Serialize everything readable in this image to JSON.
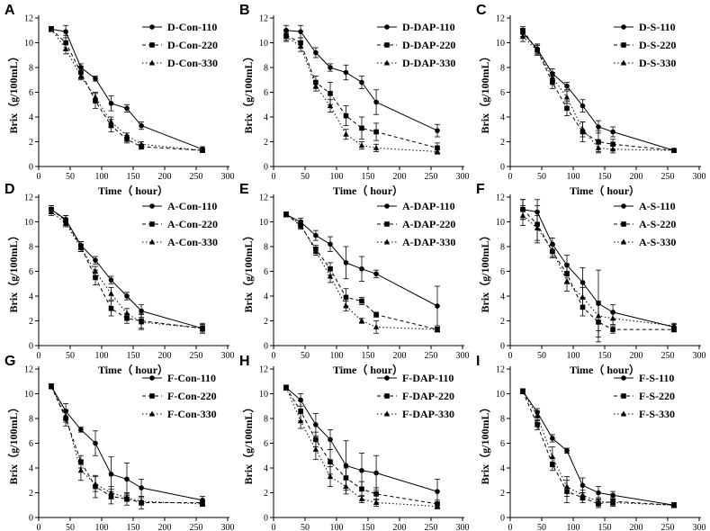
{
  "chart_data": [
    {
      "type": "line",
      "panel_label": "A",
      "xlabel": "Time（ hour）",
      "ylabel": "Brix（g/100mL）",
      "xlim": [
        0,
        300
      ],
      "ylim": [
        0,
        12
      ],
      "xticks": [
        0,
        50,
        100,
        150,
        200,
        250,
        300
      ],
      "yticks": [
        0,
        2,
        4,
        6,
        8,
        10,
        12
      ],
      "x": [
        20,
        43,
        67,
        90,
        115,
        140,
        163,
        260
      ],
      "series": [
        {
          "name": "D-Con-110",
          "marker": "circle",
          "dash": "solid",
          "values": [
            11.1,
            10.9,
            8.0,
            7.1,
            5.1,
            4.7,
            3.3,
            1.4
          ],
          "errors": [
            0.2,
            0.5,
            0.3,
            0.2,
            0.6,
            0.3,
            0.3,
            0.2
          ]
        },
        {
          "name": "D-Con-220",
          "marker": "square",
          "dash": "dash",
          "values": [
            11.1,
            10.0,
            7.6,
            5.3,
            3.3,
            2.2,
            1.6,
            1.3
          ],
          "errors": [
            0.2,
            0.6,
            0.5,
            0.6,
            0.5,
            0.3,
            0.2,
            0.1
          ]
        },
        {
          "name": "D-Con-330",
          "marker": "triangle",
          "dash": "dot",
          "values": [
            11.1,
            9.5,
            7.3,
            5.6,
            3.6,
            2.5,
            1.8,
            1.3
          ],
          "errors": [
            0.2,
            0.4,
            0.3,
            0.4,
            0.4,
            0.2,
            0.2,
            0.1
          ]
        }
      ]
    },
    {
      "type": "line",
      "panel_label": "B",
      "xlabel": "Time（ hour）",
      "ylabel": "Brix（g/100mL）",
      "xlim": [
        0,
        300
      ],
      "ylim": [
        0,
        12
      ],
      "xticks": [
        0,
        50,
        100,
        150,
        200,
        250,
        300
      ],
      "yticks": [
        0,
        2,
        4,
        6,
        8,
        10,
        12
      ],
      "x": [
        20,
        43,
        67,
        90,
        115,
        140,
        163,
        260
      ],
      "series": [
        {
          "name": "D-DAP-110",
          "marker": "circle",
          "dash": "solid",
          "values": [
            11.0,
            10.9,
            9.2,
            8.0,
            7.6,
            6.8,
            5.2,
            2.9
          ],
          "errors": [
            0.4,
            0.5,
            0.4,
            0.3,
            0.6,
            0.5,
            1.0,
            0.5
          ]
        },
        {
          "name": "D-DAP-220",
          "marker": "square",
          "dash": "dash",
          "values": [
            10.6,
            10.0,
            6.8,
            5.9,
            4.1,
            3.1,
            2.8,
            1.5
          ],
          "errors": [
            0.4,
            0.4,
            0.5,
            0.9,
            0.8,
            0.9,
            0.7,
            0.4
          ]
        },
        {
          "name": "D-DAP-330",
          "marker": "triangle",
          "dash": "dot",
          "values": [
            10.5,
            9.7,
            6.5,
            4.9,
            2.6,
            1.7,
            1.5,
            1.2
          ],
          "errors": [
            0.4,
            0.4,
            0.4,
            0.5,
            0.4,
            0.3,
            0.3,
            0.2
          ]
        }
      ]
    },
    {
      "type": "line",
      "panel_label": "C",
      "xlabel": "Time（ hour）",
      "ylabel": "Brix（g/100mL）",
      "xlim": [
        0,
        300
      ],
      "ylim": [
        0,
        12
      ],
      "xticks": [
        0,
        50,
        100,
        150,
        200,
        250,
        300
      ],
      "yticks": [
        0,
        2,
        4,
        6,
        8,
        10,
        12
      ],
      "x": [
        20,
        43,
        67,
        90,
        115,
        140,
        163,
        260
      ],
      "series": [
        {
          "name": "D-S-110",
          "marker": "circle",
          "dash": "solid",
          "values": [
            10.8,
            9.5,
            7.5,
            6.5,
            4.9,
            3.2,
            2.8,
            1.3
          ],
          "errors": [
            0.3,
            0.4,
            0.4,
            0.3,
            0.5,
            0.5,
            0.4,
            0.1
          ]
        },
        {
          "name": "D-S-220",
          "marker": "square",
          "dash": "dash",
          "values": [
            11.0,
            9.4,
            6.8,
            4.7,
            2.8,
            2.0,
            1.8,
            1.3
          ],
          "errors": [
            0.3,
            0.4,
            0.5,
            0.6,
            0.8,
            0.9,
            0.4,
            0.1
          ]
        },
        {
          "name": "D-S-330",
          "marker": "triangle",
          "dash": "dot",
          "values": [
            10.5,
            9.4,
            7.2,
            5.6,
            3.0,
            1.5,
            1.4,
            1.3
          ],
          "errors": [
            0.4,
            0.4,
            0.4,
            0.5,
            0.6,
            0.3,
            0.3,
            0.1
          ]
        }
      ]
    },
    {
      "type": "line",
      "panel_label": "D",
      "xlabel": "Time（ hour）",
      "ylabel": "Brix（g/100mL）",
      "xlim": [
        0,
        300
      ],
      "ylim": [
        0,
        12
      ],
      "xticks": [
        0,
        50,
        100,
        150,
        200,
        250,
        300
      ],
      "yticks": [
        0,
        2,
        4,
        6,
        8,
        10,
        12
      ],
      "x": [
        20,
        43,
        67,
        90,
        115,
        140,
        163,
        260
      ],
      "series": [
        {
          "name": "A-Con-110",
          "marker": "circle",
          "dash": "solid",
          "values": [
            11.0,
            10.2,
            8.1,
            6.9,
            5.3,
            4.0,
            2.8,
            1.4
          ],
          "errors": [
            0.3,
            0.3,
            0.3,
            0.3,
            0.3,
            0.3,
            0.5,
            0.4
          ]
        },
        {
          "name": "A-Con-220",
          "marker": "square",
          "dash": "dash",
          "values": [
            11.0,
            10.1,
            8.0,
            5.5,
            3.0,
            2.2,
            2.0,
            1.4
          ],
          "errors": [
            0.3,
            0.4,
            0.4,
            0.6,
            0.6,
            0.4,
            0.6,
            0.3
          ]
        },
        {
          "name": "A-Con-330",
          "marker": "triangle",
          "dash": "dot",
          "values": [
            10.8,
            9.9,
            7.9,
            6.0,
            4.2,
            2.6,
            1.9,
            1.4
          ],
          "errors": [
            0.3,
            0.3,
            0.3,
            0.4,
            0.5,
            0.4,
            0.6,
            0.2
          ]
        }
      ]
    },
    {
      "type": "line",
      "panel_label": "E",
      "xlabel": "Time（ hour）",
      "ylabel": "Brix（g/100mL）",
      "xlim": [
        0,
        300
      ],
      "ylim": [
        0,
        12
      ],
      "xticks": [
        0,
        50,
        100,
        150,
        200,
        250,
        300
      ],
      "yticks": [
        0,
        2,
        4,
        6,
        8,
        10,
        12
      ],
      "x": [
        20,
        43,
        67,
        90,
        115,
        140,
        163,
        260
      ],
      "series": [
        {
          "name": "A-DAP-110",
          "marker": "circle",
          "dash": "solid",
          "values": [
            10.6,
            10.0,
            8.9,
            8.2,
            6.7,
            6.2,
            5.8,
            3.2
          ],
          "errors": [
            0.2,
            0.3,
            0.4,
            0.6,
            1.3,
            1.0,
            0.3,
            1.6
          ]
        },
        {
          "name": "A-DAP-220",
          "marker": "square",
          "dash": "dash",
          "values": [
            10.6,
            9.7,
            7.8,
            6.2,
            3.9,
            3.6,
            2.5,
            1.3
          ],
          "errors": [
            0.2,
            0.3,
            0.3,
            0.5,
            0.7,
            0.3,
            0.2,
            0.2
          ]
        },
        {
          "name": "A-DAP-330",
          "marker": "triangle",
          "dash": "dot",
          "values": [
            10.6,
            9.8,
            7.6,
            5.6,
            3.2,
            2.0,
            1.5,
            1.3
          ],
          "errors": [
            0.2,
            0.3,
            0.3,
            0.5,
            0.4,
            0.2,
            0.5,
            0.2
          ]
        }
      ]
    },
    {
      "type": "line",
      "panel_label": "F",
      "xlabel": "Time（ hour）",
      "ylabel": "Brix（g/100mL）",
      "xlim": [
        0,
        300
      ],
      "ylim": [
        0,
        12
      ],
      "xticks": [
        0,
        50,
        100,
        150,
        200,
        250,
        300
      ],
      "yticks": [
        0,
        2,
        4,
        6,
        8,
        10,
        12
      ],
      "x": [
        20,
        43,
        67,
        90,
        115,
        140,
        163,
        260
      ],
      "series": [
        {
          "name": "A-S-110",
          "marker": "circle",
          "dash": "solid",
          "values": [
            11.0,
            10.8,
            8.2,
            6.5,
            5.1,
            3.4,
            2.7,
            1.5
          ],
          "errors": [
            0.8,
            1.0,
            0.5,
            0.8,
            1.2,
            2.7,
            0.6,
            0.2
          ]
        },
        {
          "name": "A-S-220",
          "marker": "square",
          "dash": "dash",
          "values": [
            11.0,
            9.8,
            7.6,
            5.8,
            3.1,
            1.9,
            1.3,
            1.3
          ],
          "errors": [
            0.8,
            1.5,
            0.5,
            0.8,
            0.7,
            1.6,
            0.3,
            0.2
          ]
        },
        {
          "name": "A-S-330",
          "marker": "triangle",
          "dash": "dot",
          "values": [
            10.5,
            9.5,
            7.7,
            5.2,
            3.9,
            2.4,
            2.2,
            1.6
          ],
          "errors": [
            0.8,
            1.0,
            0.5,
            0.8,
            0.8,
            1.2,
            0.5,
            0.2
          ]
        }
      ]
    },
    {
      "type": "line",
      "panel_label": "G",
      "xlabel": "Time（ hour）",
      "ylabel": "Brix（g/100mL）",
      "xlim": [
        0,
        300
      ],
      "ylim": [
        0,
        12
      ],
      "xticks": [
        0,
        50,
        100,
        150,
        200,
        250,
        300
      ],
      "yticks": [
        0,
        2,
        4,
        6,
        8,
        10,
        12
      ],
      "x": [
        20,
        43,
        67,
        90,
        115,
        140,
        163,
        260
      ],
      "series": [
        {
          "name": "F-Con-110",
          "marker": "circle",
          "dash": "solid",
          "values": [
            10.6,
            8.6,
            7.1,
            6.0,
            3.5,
            3.1,
            2.4,
            1.4
          ],
          "errors": [
            0.2,
            0.6,
            0.2,
            1.0,
            1.4,
            1.3,
            0.7,
            0.3
          ]
        },
        {
          "name": "F-Con-220",
          "marker": "square",
          "dash": "dash",
          "values": [
            10.6,
            8.0,
            4.5,
            2.5,
            1.7,
            1.5,
            1.2,
            1.2
          ],
          "errors": [
            0.2,
            0.6,
            0.5,
            0.9,
            0.6,
            0.5,
            0.5,
            0.2
          ]
        },
        {
          "name": "F-Con-330",
          "marker": "triangle",
          "dash": "dot",
          "values": [
            10.6,
            8.2,
            3.8,
            2.7,
            2.0,
            1.6,
            1.3,
            1.1
          ],
          "errors": [
            0.2,
            0.5,
            0.8,
            0.6,
            0.5,
            0.3,
            0.3,
            0.2
          ]
        }
      ]
    },
    {
      "type": "line",
      "panel_label": "H",
      "xlabel": "Time（ hour）",
      "ylabel": "Brix（g/100mL）",
      "xlim": [
        0,
        300
      ],
      "ylim": [
        0,
        12
      ],
      "xticks": [
        0,
        50,
        100,
        150,
        200,
        250,
        300
      ],
      "yticks": [
        0,
        2,
        4,
        6,
        8,
        10,
        12
      ],
      "x": [
        20,
        43,
        67,
        90,
        115,
        140,
        163,
        260
      ],
      "series": [
        {
          "name": "F-DAP-110",
          "marker": "circle",
          "dash": "solid",
          "values": [
            10.5,
            9.5,
            7.5,
            6.3,
            4.2,
            3.8,
            3.6,
            2.1
          ],
          "errors": [
            0.2,
            0.5,
            0.9,
            0.8,
            2.0,
            1.4,
            1.4,
            1.0
          ]
        },
        {
          "name": "F-DAP-220",
          "marker": "square",
          "dash": "dash",
          "values": [
            10.5,
            8.6,
            6.3,
            4.5,
            3.2,
            2.3,
            1.9,
            1.1
          ],
          "errors": [
            0.2,
            0.8,
            0.6,
            1.0,
            0.8,
            0.6,
            0.5,
            0.3
          ]
        },
        {
          "name": "F-DAP-330",
          "marker": "triangle",
          "dash": "dot",
          "values": [
            10.5,
            7.8,
            5.5,
            3.3,
            2.5,
            1.5,
            1.2,
            0.9
          ],
          "errors": [
            0.2,
            0.6,
            0.8,
            0.8,
            0.6,
            0.3,
            0.3,
            0.2
          ]
        }
      ]
    },
    {
      "type": "line",
      "panel_label": "I",
      "xlabel": "Time（ hour）",
      "ylabel": "Brix（g/100mL）",
      "xlim": [
        0,
        300
      ],
      "ylim": [
        0,
        12
      ],
      "xticks": [
        0,
        50,
        100,
        150,
        200,
        250,
        300
      ],
      "yticks": [
        0,
        2,
        4,
        6,
        8,
        10,
        12
      ],
      "x": [
        20,
        43,
        67,
        90,
        115,
        140,
        163,
        260
      ],
      "series": [
        {
          "name": "F-S-110",
          "marker": "circle",
          "dash": "solid",
          "values": [
            10.2,
            8.5,
            6.4,
            5.4,
            2.6,
            2.0,
            1.8,
            1.0
          ],
          "errors": [
            0.2,
            0.3,
            0.3,
            0.2,
            0.6,
            0.5,
            0.3,
            0.2
          ]
        },
        {
          "name": "F-S-220",
          "marker": "square",
          "dash": "dash",
          "values": [
            10.2,
            7.5,
            4.3,
            2.1,
            1.6,
            1.1,
            1.3,
            1.0
          ],
          "errors": [
            0.2,
            0.4,
            0.5,
            0.9,
            0.4,
            0.3,
            0.3,
            0.2
          ]
        },
        {
          "name": "F-S-330",
          "marker": "triangle",
          "dash": "dot",
          "values": [
            10.2,
            8.2,
            4.9,
            2.5,
            1.8,
            1.3,
            1.2,
            1.0
          ],
          "errors": [
            0.2,
            0.4,
            0.8,
            0.8,
            0.4,
            0.3,
            0.3,
            0.2
          ]
        }
      ]
    }
  ]
}
